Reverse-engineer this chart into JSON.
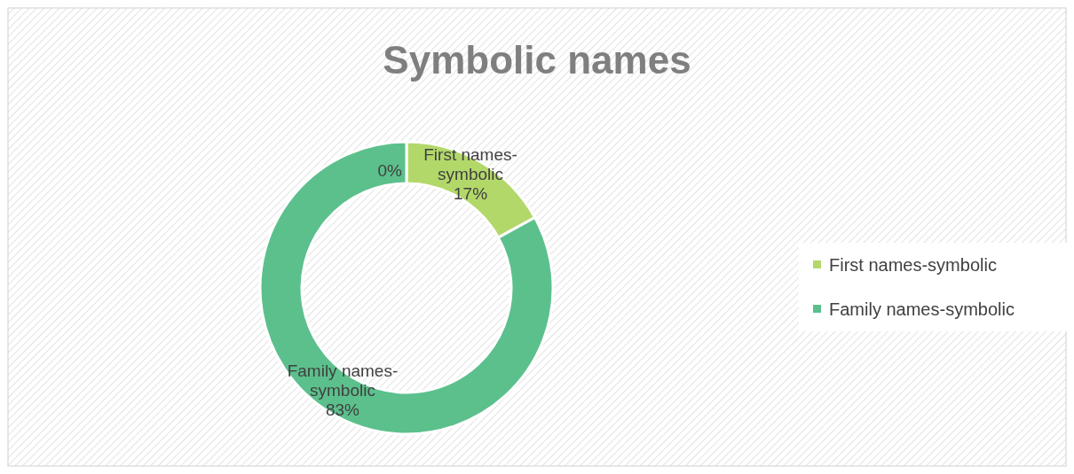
{
  "chart_data": {
    "type": "donut",
    "title": "Symbolic names",
    "categories": [
      "First names-symbolic",
      "Family names-symbolic"
    ],
    "values": [
      17,
      83
    ],
    "colors": [
      "#b3d86a",
      "#5cc08c"
    ],
    "value_labels": [
      "17%",
      "83%"
    ],
    "legend": "right",
    "annotations": [
      "0%"
    ]
  }
}
